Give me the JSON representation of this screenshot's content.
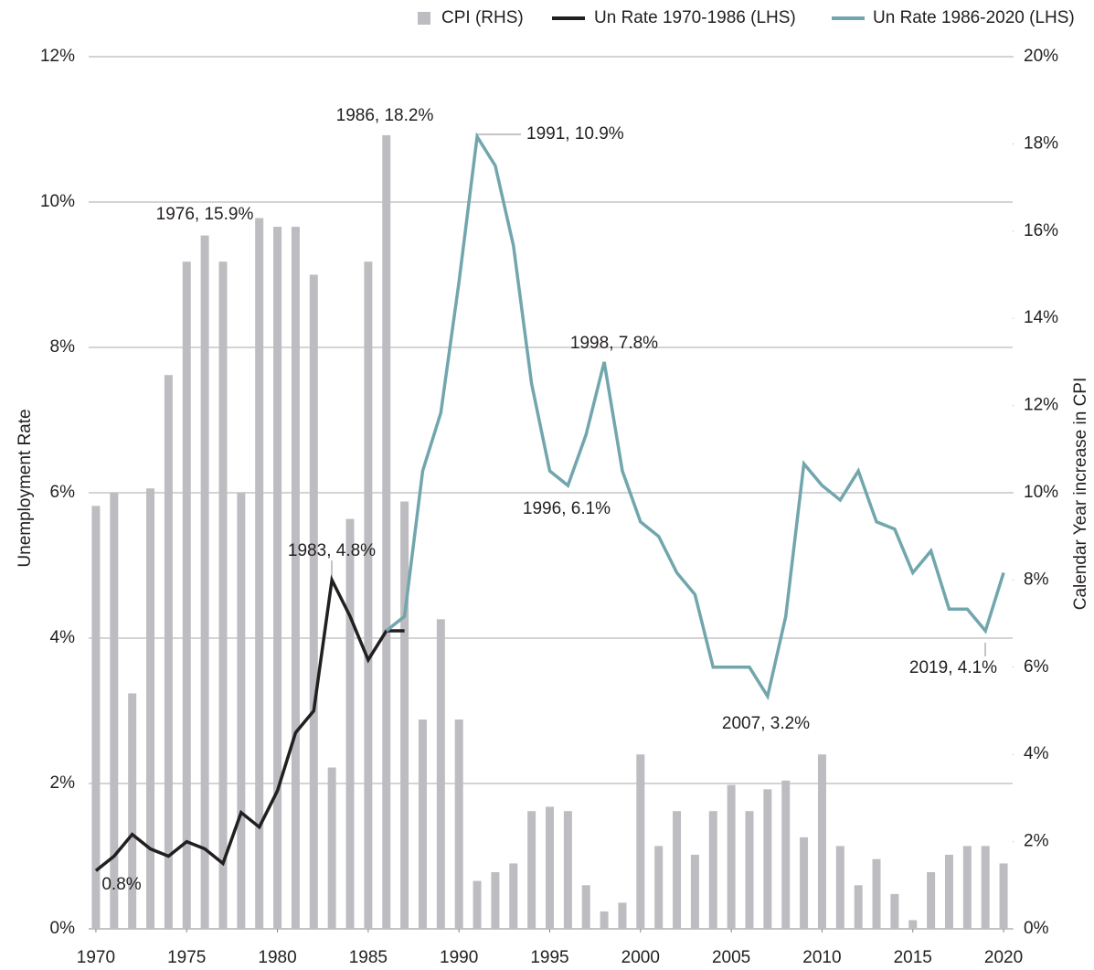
{
  "chart_data": {
    "type": "bar_line",
    "y_label": "Unemployment Rate",
    "y2_label": "Calendar Year increase in CPI",
    "x": [
      1970,
      1971,
      1972,
      1973,
      1974,
      1975,
      1976,
      1977,
      1978,
      1979,
      1980,
      1981,
      1982,
      1983,
      1984,
      1985,
      1986,
      1987,
      1988,
      1989,
      1990,
      1991,
      1992,
      1993,
      1994,
      1995,
      1996,
      1997,
      1998,
      1999,
      2000,
      2001,
      2002,
      2003,
      2004,
      2005,
      2006,
      2007,
      2008,
      2009,
      2010,
      2011,
      2012,
      2013,
      2014,
      2015,
      2016,
      2017,
      2018,
      2019,
      2020
    ],
    "xlim": [
      1969.6,
      2020.5
    ],
    "xticks": [
      1970,
      1975,
      1980,
      1985,
      1990,
      1995,
      2000,
      2005,
      2010,
      2015,
      2020
    ],
    "ylim": [
      0,
      12
    ],
    "yticks": [
      {
        "value": 0,
        "label": "0%"
      },
      {
        "value": 2,
        "label": "2%"
      },
      {
        "value": 4,
        "label": "4%"
      },
      {
        "value": 6,
        "label": "6%"
      },
      {
        "value": 8,
        "label": "8%"
      },
      {
        "value": 10,
        "label": "10%"
      },
      {
        "value": 12,
        "label": "12%"
      }
    ],
    "y2lim": [
      0,
      20
    ],
    "y2ticks": [
      {
        "value": 0,
        "label": "0%"
      },
      {
        "value": 2,
        "label": "2%"
      },
      {
        "value": 4,
        "label": "4%"
      },
      {
        "value": 6,
        "label": "6%"
      },
      {
        "value": 8,
        "label": "8%"
      },
      {
        "value": 10,
        "label": "10%"
      },
      {
        "value": 12,
        "label": "12%"
      },
      {
        "value": 14,
        "label": "14%"
      },
      {
        "value": 16,
        "label": "16%"
      },
      {
        "value": 18,
        "label": "18%"
      },
      {
        "value": 20,
        "label": "20%"
      }
    ],
    "grid": true,
    "legend": "top-right",
    "series": [
      {
        "name": "CPI (RHS)",
        "type": "bar",
        "axis": "y2",
        "color": "#bdbdc1",
        "values": [
          9.7,
          10.0,
          5.4,
          10.1,
          12.7,
          15.3,
          15.9,
          15.3,
          10.0,
          16.3,
          16.1,
          16.1,
          15.0,
          3.7,
          9.4,
          15.3,
          18.2,
          9.8,
          4.8,
          7.1,
          4.8,
          1.1,
          1.3,
          1.5,
          2.7,
          2.8,
          2.7,
          1.0,
          0.4,
          0.6,
          4.0,
          1.9,
          2.7,
          1.7,
          2.7,
          3.3,
          2.7,
          3.2,
          3.4,
          2.1,
          4.0,
          1.9,
          1.0,
          1.6,
          0.8,
          0.2,
          1.3,
          1.7,
          1.9,
          1.9,
          1.5
        ]
      },
      {
        "name": "Un Rate 1970-1986 (LHS)",
        "type": "line",
        "color": "#231f20",
        "values": [
          0.8,
          1.0,
          1.3,
          1.1,
          1.0,
          1.2,
          1.1,
          0.9,
          1.6,
          1.4,
          1.9,
          2.7,
          3.0,
          4.8,
          4.3,
          3.7,
          4.1,
          4.1,
          null,
          null,
          null,
          null,
          null,
          null,
          null,
          null,
          null,
          null,
          null,
          null,
          null,
          null,
          null,
          null,
          null,
          null,
          null,
          null,
          null,
          null,
          null,
          null,
          null,
          null,
          null,
          null,
          null,
          null,
          null,
          null,
          null
        ]
      },
      {
        "name": "Un Rate 1986-2020 (LHS)",
        "type": "line",
        "color": "#71a6ad",
        "values": [
          null,
          null,
          null,
          null,
          null,
          null,
          null,
          null,
          null,
          null,
          null,
          null,
          null,
          null,
          null,
          null,
          4.1,
          4.3,
          6.3,
          7.1,
          8.9,
          10.9,
          10.5,
          9.4,
          7.5,
          6.3,
          6.1,
          6.8,
          7.8,
          6.3,
          5.6,
          5.4,
          4.9,
          4.6,
          3.6,
          3.6,
          3.6,
          3.2,
          4.3,
          6.4,
          6.1,
          5.9,
          6.3,
          5.6,
          5.5,
          4.9,
          5.2,
          4.4,
          4.4,
          4.1,
          4.9
        ]
      }
    ],
    "annotations": [
      "1976, 15.9%",
      "1986, 18.2%",
      "1991, 10.9%",
      "1998, 7.8%",
      "1996, 6.1%",
      "1983, 4.8%",
      "0.8%",
      "2007, 3.2%",
      "2019, 4.1%"
    ]
  }
}
